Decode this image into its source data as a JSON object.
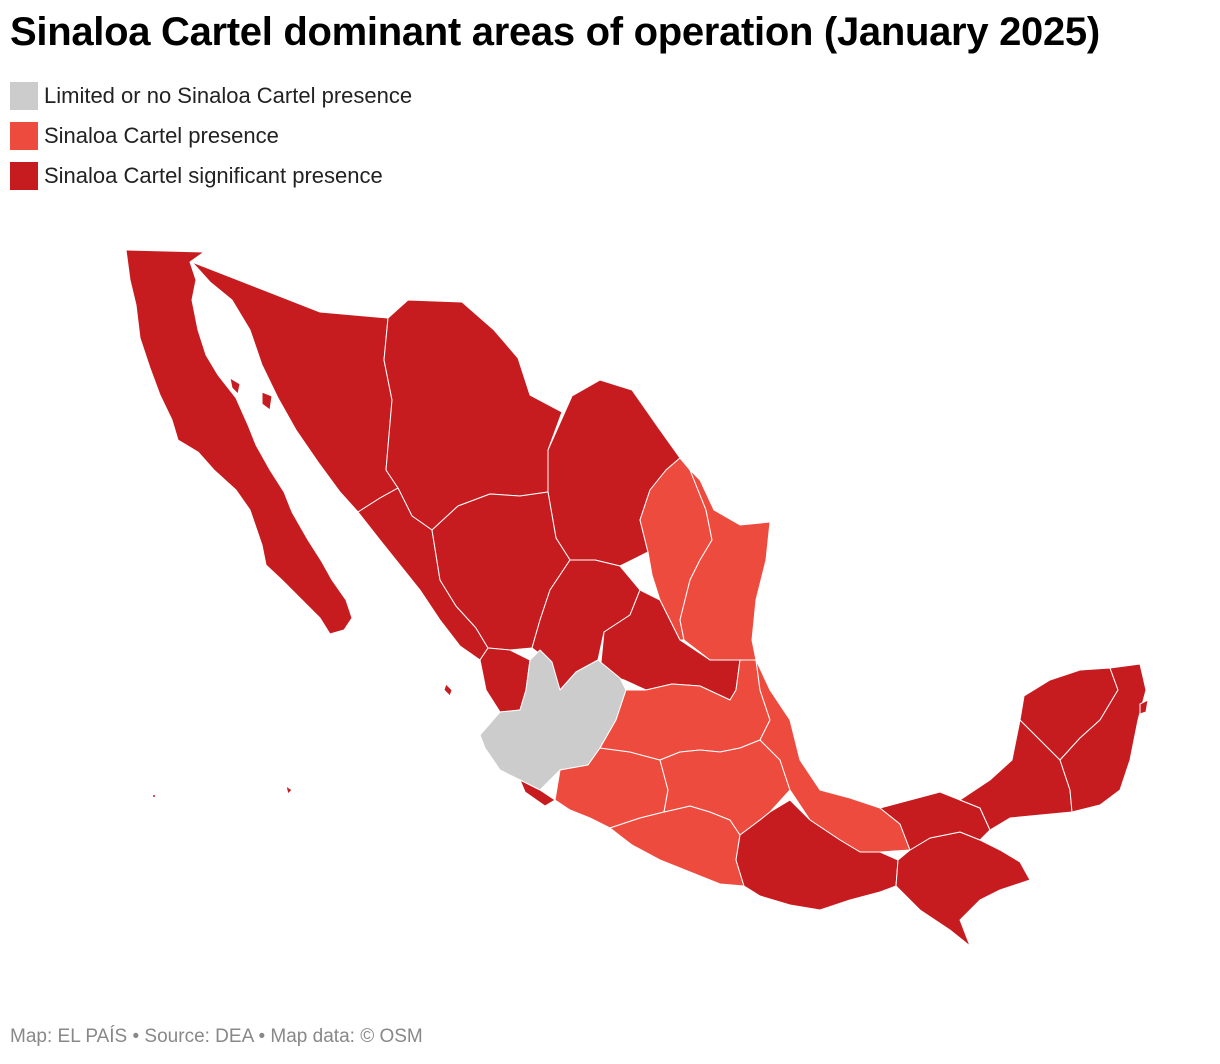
{
  "title": "Sinaloa Cartel dominant areas of operation (January 2025)",
  "legend": [
    {
      "label": "Limited or no Sinaloa Cartel presence",
      "color": "#cccccc"
    },
    {
      "label": "Sinaloa Cartel presence",
      "color": "#ee4b3f"
    },
    {
      "label": "Sinaloa Cartel significant presence",
      "color": "#c71c1f"
    }
  ],
  "footer": "Map: EL PAÍS • Source: DEA • Map data: © OSM"
}
